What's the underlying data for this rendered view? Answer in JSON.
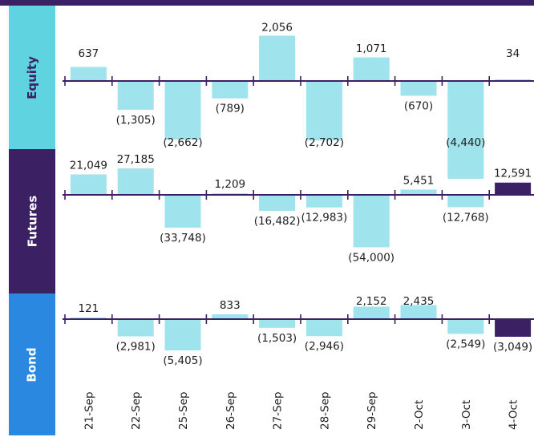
{
  "chart_data": {
    "type": "bar",
    "categories": [
      "21-Sep",
      "22-Sep",
      "25-Sep",
      "26-Sep",
      "27-Sep",
      "28-Sep",
      "29-Sep",
      "2-Oct",
      "3-Oct",
      "4-Oct"
    ],
    "panels": [
      {
        "name": "Equity",
        "values": [
          637,
          -1305,
          -2662,
          -789,
          2056,
          -2702,
          1071,
          -670,
          -4440,
          34
        ],
        "labels": [
          "637",
          "(1,305)",
          "(2,662)",
          "(789)",
          "2,056",
          "(2,702)",
          "1,071",
          "(670)",
          "(4,440)",
          "34"
        ],
        "highlight_last": false
      },
      {
        "name": "Futures",
        "values": [
          21049,
          27185,
          -33748,
          1209,
          -16482,
          -12983,
          -54000,
          5451,
          -12768,
          12591
        ],
        "labels": [
          "21,049",
          "27,185",
          "(33,748)",
          "1,209",
          "(16,482)",
          "(12,983)",
          "(54,000)",
          "5,451",
          "(12,768)",
          "12,591"
        ],
        "highlight_last": true
      },
      {
        "name": "Bond",
        "values": [
          121,
          -2981,
          -5405,
          833,
          -1503,
          -2946,
          2152,
          2435,
          -2549,
          -3049
        ],
        "labels": [
          "121",
          "(2,981)",
          "(5,405)",
          "833",
          "(1,503)",
          "(2,946)",
          "2,152",
          "2,435",
          "(2,549)",
          "(3,049)"
        ],
        "highlight_last": true
      }
    ],
    "colors": {
      "bar": "#9fe3ec",
      "highlight": "#3b2064",
      "axis": "#3b2064",
      "equity_band": "#5fd3e0",
      "futures_band": "#3b2064",
      "bond_band": "#2b88e0"
    }
  }
}
